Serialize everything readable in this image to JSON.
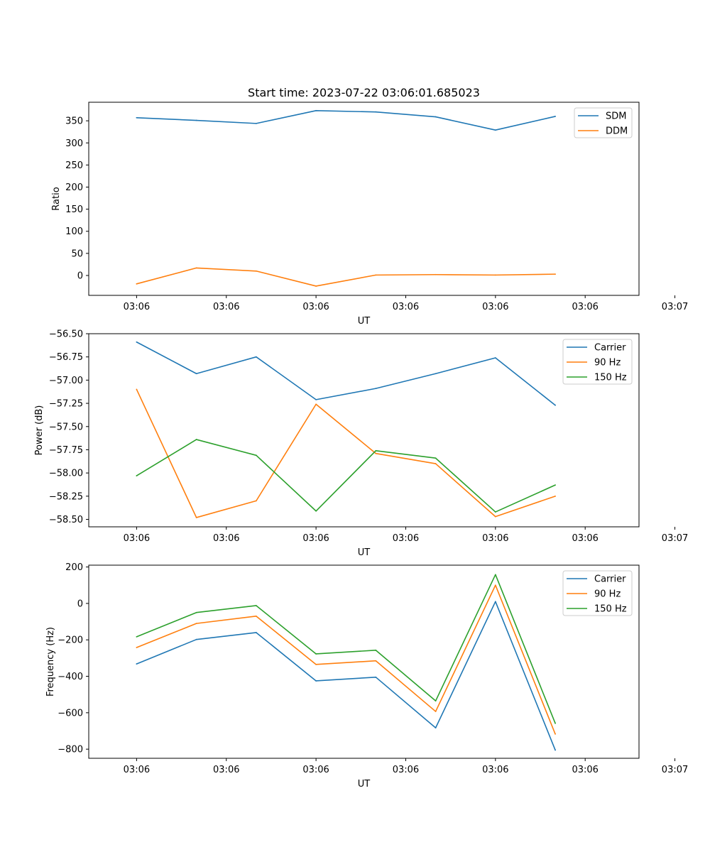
{
  "chart_data": [
    {
      "type": "line",
      "title": "Start time: 2023-07-22 03:06:01.685023",
      "xlabel": "UT",
      "ylabel": "Ratio",
      "x_tick_labels": [
        "03:06",
        "03:06",
        "03:06",
        "03:06",
        "03:06",
        "03:06",
        "03:07"
      ],
      "x": [
        1,
        2,
        3,
        4,
        5,
        6,
        7,
        8
      ],
      "xlim": [
        0.2,
        9.4
      ],
      "ylim": [
        -45,
        392
      ],
      "y_ticks": [
        0,
        50,
        100,
        150,
        200,
        250,
        300,
        350
      ],
      "y_tick_labels": [
        "0",
        "50",
        "100",
        "150",
        "200",
        "250",
        "300",
        "350"
      ],
      "legend": "top-right",
      "series": [
        {
          "name": "SDM",
          "color": "#1f77b4",
          "values": [
            357,
            351,
            344,
            373,
            370,
            359,
            329,
            360
          ]
        },
        {
          "name": "DDM",
          "color": "#ff7f0e",
          "values": [
            -19,
            17,
            10,
            -24,
            1,
            2,
            1,
            3
          ]
        }
      ]
    },
    {
      "type": "line",
      "title": "",
      "xlabel": "UT",
      "ylabel": "Power (dB)",
      "x_tick_labels": [
        "03:06",
        "03:06",
        "03:06",
        "03:06",
        "03:06",
        "03:06",
        "03:07"
      ],
      "x": [
        1,
        2,
        3,
        4,
        5,
        6,
        7,
        8
      ],
      "xlim": [
        0.2,
        9.4
      ],
      "ylim": [
        -58.58,
        -56.5
      ],
      "y_ticks": [
        -56.5,
        -56.75,
        -57.0,
        -57.25,
        -57.5,
        -57.75,
        -58.0,
        -58.25,
        -58.5
      ],
      "y_tick_labels": [
        "−56.50",
        "−56.75",
        "−57.00",
        "−57.25",
        "−57.50",
        "−57.75",
        "−58.00",
        "−58.25",
        "−58.50"
      ],
      "legend": "top-right",
      "series": [
        {
          "name": "Carrier",
          "color": "#1f77b4",
          "values": [
            -56.59,
            -56.93,
            -56.75,
            -57.21,
            -57.09,
            -56.93,
            -56.76,
            -57.27
          ]
        },
        {
          "name": "90 Hz",
          "color": "#ff7f0e",
          "values": [
            -57.1,
            -58.48,
            -58.3,
            -57.26,
            -57.79,
            -57.9,
            -58.47,
            -58.25
          ]
        },
        {
          "name": "150 Hz",
          "color": "#2ca02c",
          "values": [
            -58.03,
            -57.64,
            -57.81,
            -58.41,
            -57.76,
            -57.84,
            -58.42,
            -58.13
          ]
        }
      ]
    },
    {
      "type": "line",
      "title": "",
      "xlabel": "UT",
      "ylabel": "Frequency (Hz)",
      "x_tick_labels": [
        "03:06",
        "03:06",
        "03:06",
        "03:06",
        "03:06",
        "03:06",
        "03:07"
      ],
      "x": [
        1,
        2,
        3,
        4,
        5,
        6,
        7,
        8
      ],
      "xlim": [
        0.2,
        9.4
      ],
      "ylim": [
        -850,
        210
      ],
      "y_ticks": [
        200,
        0,
        -200,
        -400,
        -600,
        -800
      ],
      "y_tick_labels": [
        "200",
        "0",
        "−200",
        "−400",
        "−600",
        "−800"
      ],
      "legend": "top-right",
      "series": [
        {
          "name": "Carrier",
          "color": "#1f77b4",
          "values": [
            -332,
            -198,
            -160,
            -425,
            -405,
            -683,
            10,
            -805
          ]
        },
        {
          "name": "90 Hz",
          "color": "#ff7f0e",
          "values": [
            -242,
            -110,
            -70,
            -335,
            -315,
            -593,
            100,
            -717
          ]
        },
        {
          "name": "150 Hz",
          "color": "#2ca02c",
          "values": [
            -183,
            -50,
            -12,
            -277,
            -257,
            -535,
            158,
            -658
          ]
        }
      ]
    }
  ]
}
